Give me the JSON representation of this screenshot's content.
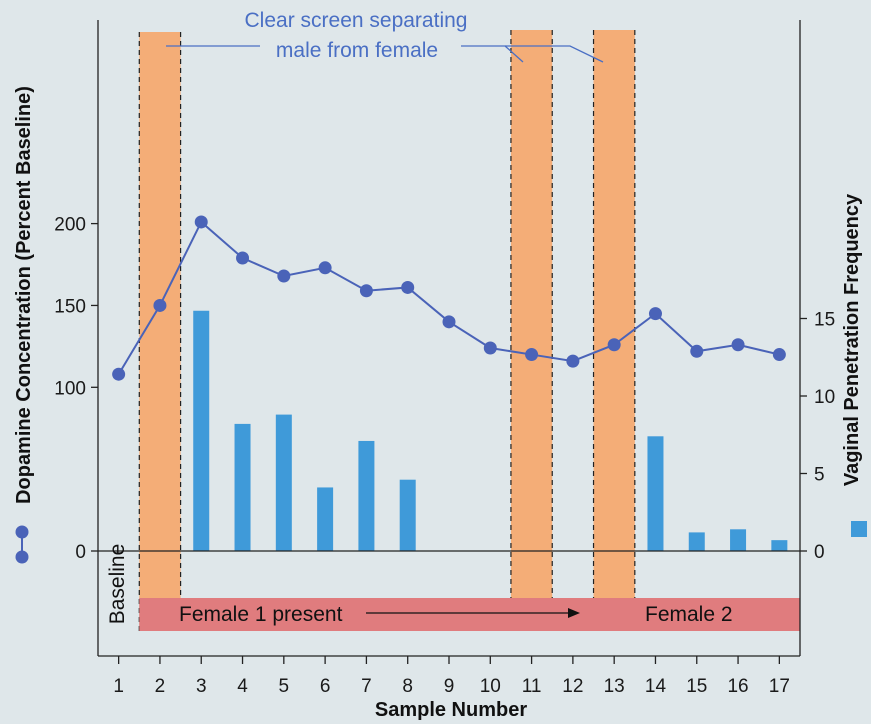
{
  "chart_data": {
    "type": "bar",
    "x": [
      1,
      2,
      3,
      4,
      5,
      6,
      7,
      8,
      9,
      10,
      11,
      12,
      13,
      14,
      15,
      16,
      17
    ],
    "xlabel": "Sample Number",
    "xlim": [
      0.5,
      17.5
    ],
    "y_left": {
      "label": "Dopamine Concentration (Percent Baseline)",
      "ticks": [
        0,
        100,
        150,
        200
      ],
      "ylim": [
        0,
        215
      ]
    },
    "y_right": {
      "label": "Vaginal Penetration Frequency",
      "ticks": [
        0,
        5,
        10,
        15
      ],
      "ylim": [
        0,
        16
      ]
    },
    "series": [
      {
        "kind": "line",
        "axis": "left",
        "values": [
          108,
          150,
          201,
          179,
          168,
          173,
          159,
          161,
          140,
          124,
          120,
          116,
          126,
          145,
          122,
          126,
          120
        ]
      },
      {
        "kind": "bar",
        "axis": "right",
        "values": [
          0,
          0,
          15.5,
          8.2,
          8.8,
          4.1,
          7.1,
          4.6,
          0,
          0,
          0,
          0,
          0,
          7.4,
          1.2,
          1.4,
          0.7
        ]
      }
    ],
    "shaded_intervals": [
      {
        "from": 1.5,
        "to": 2.5
      },
      {
        "from": 10.5,
        "to": 11.5
      },
      {
        "from": 12.5,
        "to": 13.5
      }
    ],
    "annotations": {
      "screen_line1": "Clear screen separating",
      "screen_line2": "male from female",
      "baseline": "Baseline",
      "female1": "Female 1 present",
      "female2": "Female 2"
    },
    "colors": {
      "line": "#4a63b8",
      "bar": "#3f9ad9",
      "screen": "#f5a86c",
      "presence_bar": "#e07c7e",
      "annotation_text": "#4a6fc4"
    }
  }
}
